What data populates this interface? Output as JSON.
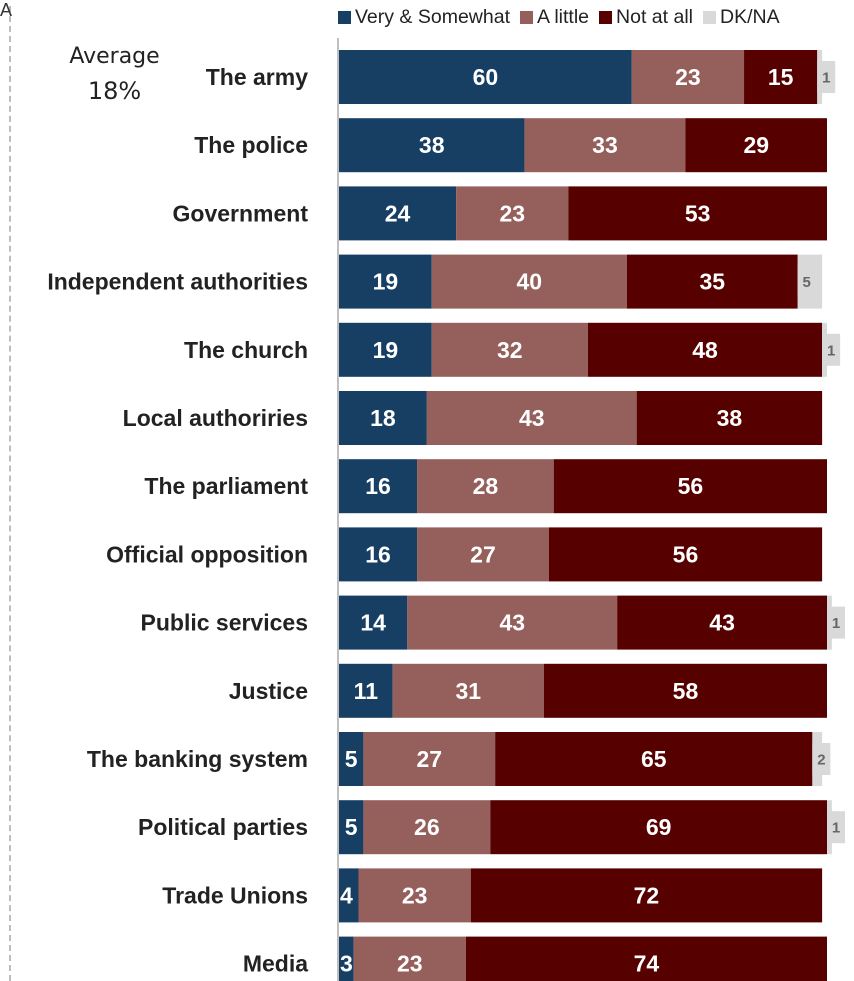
{
  "frame_corner": "A",
  "average": {
    "label": "Average",
    "value": "18%"
  },
  "chart_data": {
    "type": "bar",
    "orientation": "horizontal",
    "stacked": true,
    "title": "",
    "xlim": [
      0,
      100
    ],
    "legend_position": "top",
    "categories": [
      "The army",
      "The police",
      "Government",
      "Independent authorities",
      "The church",
      "Local authoriries",
      "The parliament",
      "Official opposition",
      "Public services",
      "Justice",
      "The banking system",
      "Political parties",
      "Trade Unions",
      "Media"
    ],
    "series": [
      {
        "name": "Very & Somewhat",
        "color": "#173f64",
        "values": [
          60,
          38,
          24,
          19,
          19,
          18,
          16,
          16,
          14,
          11,
          5,
          5,
          4,
          3
        ]
      },
      {
        "name": "A little",
        "color": "#955f5c",
        "values": [
          23,
          33,
          23,
          40,
          32,
          43,
          28,
          27,
          43,
          31,
          27,
          26,
          23,
          23
        ]
      },
      {
        "name": "Not at all",
        "color": "#560000",
        "values": [
          15,
          29,
          53,
          35,
          48,
          38,
          56,
          56,
          43,
          58,
          65,
          69,
          72,
          74
        ]
      },
      {
        "name": "DK/NA",
        "color": "#d9d9d9",
        "values": [
          1,
          null,
          null,
          5,
          1,
          null,
          null,
          null,
          1,
          null,
          2,
          1,
          null,
          null
        ]
      }
    ]
  }
}
